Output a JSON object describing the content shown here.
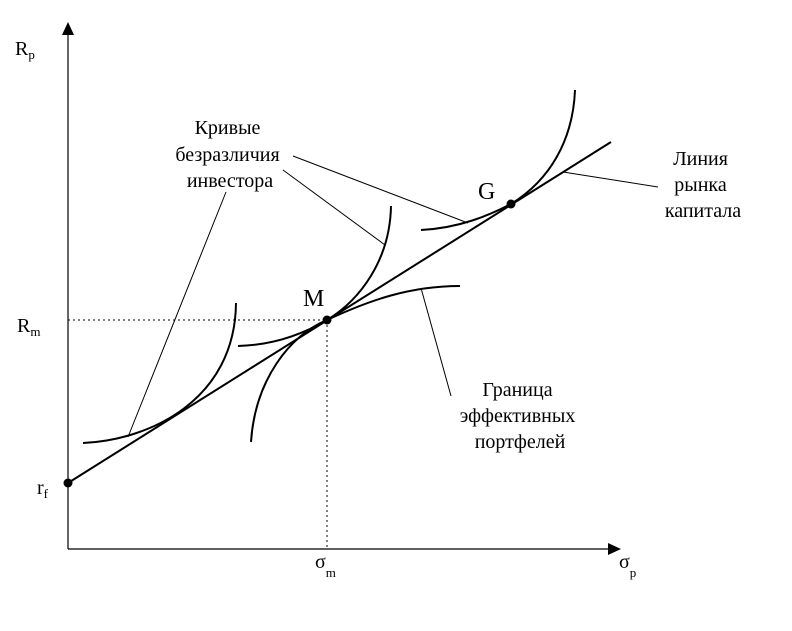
{
  "axes": {
    "y_label": {
      "main": "R",
      "sub": "p"
    },
    "x_label": {
      "main": "σ",
      "sub": "p"
    }
  },
  "levels": {
    "rm": {
      "main": "R",
      "sub": "m"
    },
    "rf": {
      "main": "r",
      "sub": "f"
    },
    "sigma_m": {
      "main": "σ",
      "sub": "m"
    }
  },
  "points": {
    "m": "M",
    "g": "G"
  },
  "annotations": {
    "indifference_curves": [
      "Кривые",
      "безразличия",
      "инвестора"
    ],
    "capital_market_line": [
      "Линия",
      "рынка",
      "капитала"
    ],
    "efficient_frontier": [
      "Граница",
      "эффективных",
      "портфелей"
    ]
  }
}
